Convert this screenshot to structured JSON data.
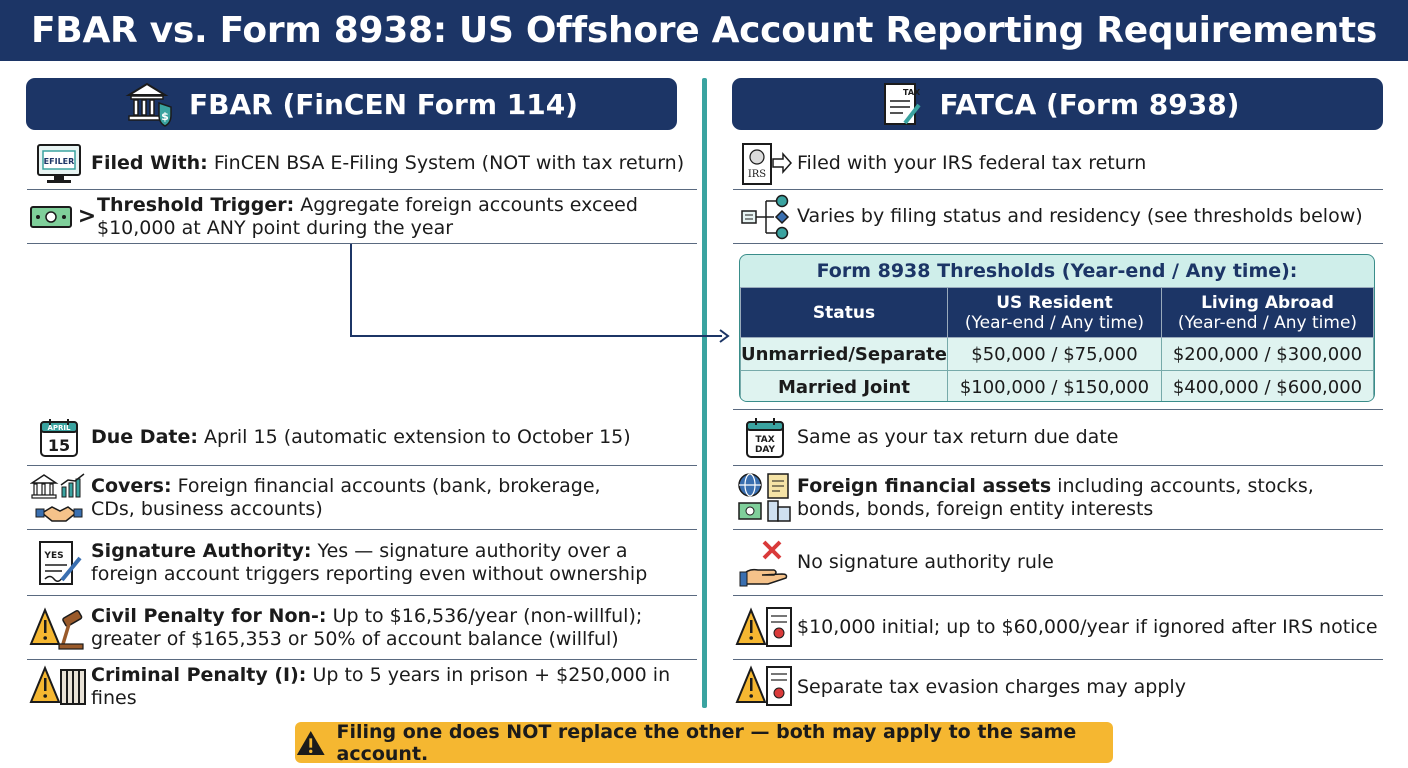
{
  "title": "FBAR vs. Form 8938: US Offshore Account Reporting Requirements",
  "fbar": {
    "header": "FBAR (FinCEN Form 114)",
    "rows": [
      {
        "label": "Filed With:",
        "text": "FinCEN BSA E-Filing System (NOT with tax return)",
        "icon": "computer-efile-icon",
        "icon_text": "EFILER"
      },
      {
        "label": "Threshold Trigger:",
        "text": "Aggregate foreign accounts exceed $10,000 at ANY point during the year",
        "icon": "cash-greater-than-icon",
        "icon_text": ">"
      },
      {
        "label": "Due Date:",
        "text": "April 15 (automatic extension to October 15)",
        "icon": "calendar-icon",
        "icon_month": "APRIL",
        "icon_day": "15"
      },
      {
        "label": "Covers:",
        "text": "Foreign financial accounts (bank, brokerage, CDs, business accounts)",
        "icon": "bank-chart-handshake-icon"
      },
      {
        "label": "Signature Authority:",
        "text": "Yes — signature authority over a foreign account triggers reporting even without ownership",
        "icon": "signed-document-icon",
        "icon_text": "YES"
      },
      {
        "label": "Civil Penalty for Non-:",
        "text": "Up to $16,536/year (non-willful); greater of $165,353 or 50% of account balance (willful)",
        "icon": "warning-gavel-icon"
      },
      {
        "label": "Criminal Penalty (I):",
        "text": "Up to 5 years in prison + $250,000 in fines",
        "icon": "warning-prison-icon"
      }
    ]
  },
  "fatca": {
    "header": "FATCA (Form 8938)",
    "rows": [
      {
        "text": "Filed with your IRS federal tax return",
        "icon": "irs-arrow-icon",
        "icon_text": "IRS"
      },
      {
        "text": "Varies by filing status and residency (see thresholds below)",
        "icon": "flow-branch-icon"
      },
      {
        "text": "Same as your tax return due date",
        "icon": "tax-day-calendar-icon",
        "icon_text": "TAX DAY"
      },
      {
        "label": "Foreign financial assets",
        "text": " including accounts, stocks, bonds, bonds, foreign entity interests",
        "icon": "globe-assets-icon"
      },
      {
        "text": "No signature authority rule",
        "icon": "no-signature-icon"
      },
      {
        "text": "$10,000 initial; up to $60,000/year if ignored after IRS notice",
        "icon": "warning-document-icon"
      },
      {
        "text": "Separate tax evasion charges may apply",
        "icon": "warning-certificate-icon"
      }
    ],
    "thresholds": {
      "title": "Form 8938 Thresholds (Year-end / Any time):",
      "columns": [
        {
          "label": "Status",
          "sub": ""
        },
        {
          "label": "US Resident",
          "sub": "(Year-end / Any time)"
        },
        {
          "label": "Living Abroad",
          "sub": "(Year-end / Any time)"
        }
      ],
      "rows": [
        [
          "Unmarried/Separate",
          "$50,000 / $75,000",
          "$200,000 / $300,000"
        ],
        [
          "Married Joint",
          "$100,000 / $150,000",
          "$400,000 / $600,000"
        ]
      ]
    }
  },
  "banner": "Filing one does NOT replace the other — both may apply to the same account.",
  "colors": {
    "navy": "#1c3566",
    "teal": "#3aa3a0",
    "banner": "#f5b731",
    "table_bg": "#cfeeea"
  }
}
